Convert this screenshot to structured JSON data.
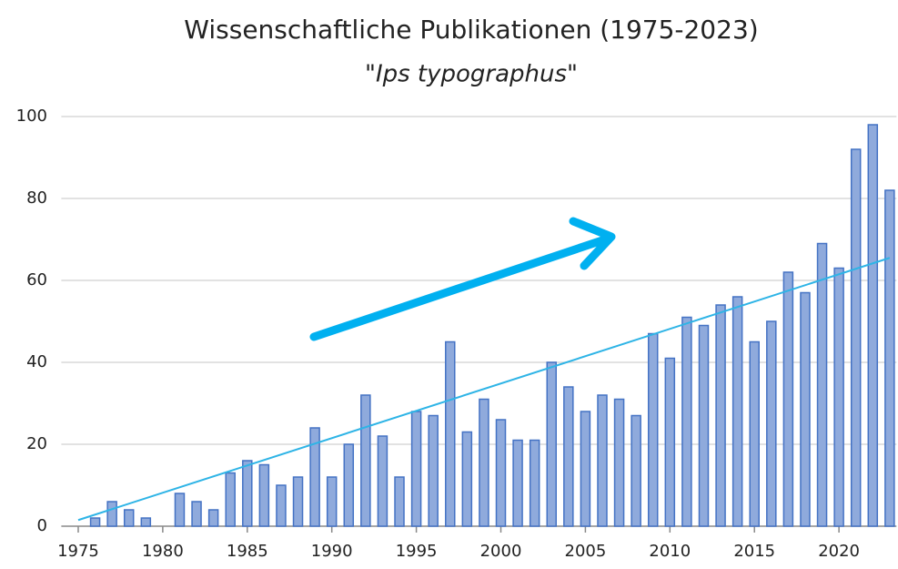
{
  "chart_data": {
    "type": "bar",
    "title": "Wissenschaftliche Publikationen (1975-2023)",
    "subtitle": "\"Ips typographus\"",
    "x": [
      1975,
      1976,
      1977,
      1978,
      1979,
      1980,
      1981,
      1982,
      1983,
      1984,
      1985,
      1986,
      1987,
      1988,
      1989,
      1990,
      1991,
      1992,
      1993,
      1994,
      1995,
      1996,
      1997,
      1998,
      1999,
      2000,
      2001,
      2002,
      2003,
      2004,
      2005,
      2006,
      2007,
      2008,
      2009,
      2010,
      2011,
      2012,
      2013,
      2014,
      2015,
      2016,
      2017,
      2018,
      2019,
      2020,
      2021,
      2022,
      2023
    ],
    "values": [
      0,
      2,
      6,
      4,
      2,
      0,
      8,
      6,
      4,
      13,
      16,
      15,
      10,
      12,
      24,
      12,
      20,
      32,
      22,
      12,
      28,
      27,
      45,
      23,
      31,
      26,
      21,
      21,
      40,
      34,
      28,
      32,
      31,
      27,
      47,
      41,
      51,
      49,
      54,
      56,
      45,
      50,
      62,
      57,
      69,
      63,
      92,
      98,
      82
    ],
    "color": "#8faadc",
    "edge_color": "#4472c4",
    "trend": {
      "x": [
        1975,
        2023
      ],
      "values": [
        1.5,
        65.5
      ],
      "color": "#2eb4e6"
    },
    "xlim": [
      1974,
      2023.4
    ],
    "xticks": [
      1975,
      1980,
      1985,
      1990,
      1995,
      2000,
      2005,
      2010,
      2015,
      2020
    ],
    "ylim": [
      0,
      100
    ],
    "yticks": [
      0,
      20,
      40,
      60,
      80,
      100
    ],
    "grid": true
  }
}
